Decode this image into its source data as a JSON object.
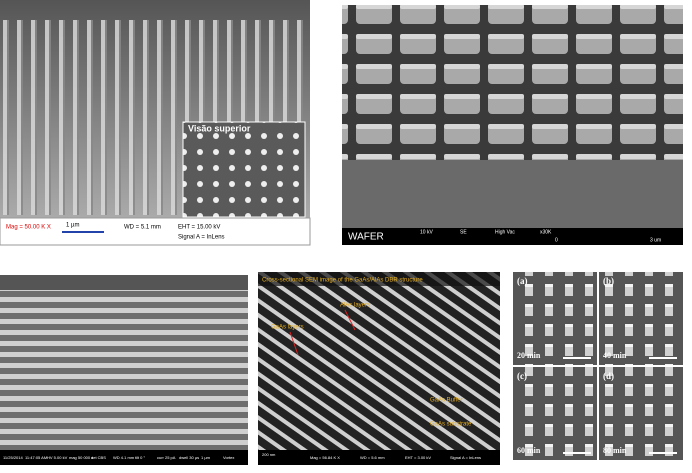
{
  "panels": [
    {
      "inset_title": "Visão superior",
      "info": [
        "Mag = 50.00 K X",
        "1 µm",
        "WD = 5.1 mm",
        "EHT = 15.00 kV",
        "Signal A = InLens"
      ]
    },
    {
      "label": "WAFER",
      "info": [
        "10 kV",
        "SE",
        "High Vac",
        "x30K",
        "0",
        "3 um"
      ]
    },
    {
      "info": [
        "11/25/2014",
        "11:47:05 AM",
        "HV 5.00 kV",
        "mag 50 000 x",
        "det CBS",
        "WD 4.1 mm",
        "tilt 0 °",
        "curr 25 pA",
        "dwell 30 µs",
        "1 µm",
        "Vortex"
      ]
    },
    {
      "title": "Cross-sectional SEM image of the GaAs/AlAs DBR structure",
      "annotations": [
        "AlAs layers",
        "GaAs layers",
        "GaAs Buffer",
        "GaAs substrate"
      ],
      "info": [
        "200 nm",
        "Mag = 56.84 K X",
        "WD = 5.6 mm",
        "EHT = 3.00 kV",
        "Signal A = InLens"
      ]
    },
    {
      "subpanels": [
        {
          "letter": "(a)",
          "time": "20 min"
        },
        {
          "letter": "(b)",
          "time": "40 min"
        },
        {
          "letter": "(c)",
          "time": "60 min"
        },
        {
          "letter": "(d)",
          "time": "80 min"
        }
      ]
    }
  ]
}
